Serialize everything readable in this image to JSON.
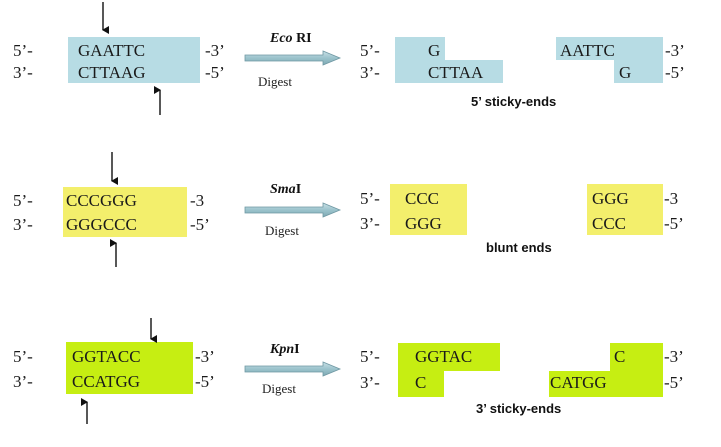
{
  "colors": {
    "ecori_box": "#b7dce4",
    "smai_box": "#f3ef6c",
    "kpni_box": "#c6ee12",
    "arrow_fill": "#9bc3cc",
    "arrow_stroke": "#6f98a3"
  },
  "rows": [
    {
      "enzyme_italic": "Eco",
      "enzyme_rest": " RI",
      "digest": "Digest",
      "caption": "5’ sticky-ends",
      "before": {
        "top_left": "5’-",
        "top_seq": "GAATTC",
        "top_right": "-3’",
        "bottom_left": "3’-",
        "bottom_seq": "CTTAAG",
        "bottom_right": "-5’"
      },
      "after": {
        "top_left": "5’-",
        "left_top_seq": "G",
        "right_top_seq": "AATTC",
        "top_right": "-3’",
        "bottom_left": "3’-",
        "left_bottom_seq": "CTTAA",
        "right_bottom_seq": "G",
        "bottom_right": "-5’"
      }
    },
    {
      "enzyme_italic": "Sma",
      "enzyme_rest": "I",
      "digest": "Digest",
      "caption": "blunt ends",
      "before": {
        "top_left": "5’-",
        "top_seq": "CCCGGG",
        "top_right": "-3",
        "bottom_left": "3’-",
        "bottom_seq": "GGGCCC",
        "bottom_right": "-5’"
      },
      "after": {
        "top_left": "5’-",
        "left_top_seq": "CCC",
        "right_top_seq": "GGG",
        "top_right": "-3",
        "bottom_left": "3’-",
        "left_bottom_seq": "GGG",
        "right_bottom_seq": "CCC",
        "bottom_right": "-5’"
      }
    },
    {
      "enzyme_italic": "Kpn",
      "enzyme_rest": "I",
      "digest": "Digest",
      "caption": "3’ sticky-ends",
      "before": {
        "top_left": "5’-",
        "top_seq": "GGTACC",
        "top_right": "-3’",
        "bottom_left": "3’-",
        "bottom_seq": "CCATGG",
        "bottom_right": "-5’"
      },
      "after": {
        "top_left": "5’-",
        "left_top_seq": "GGTAC",
        "right_top_seq": "C",
        "top_right": "-3’",
        "bottom_left": "3’-",
        "left_bottom_seq": "C",
        "right_bottom_seq": "CATGG",
        "bottom_right": "-5’"
      }
    }
  ]
}
